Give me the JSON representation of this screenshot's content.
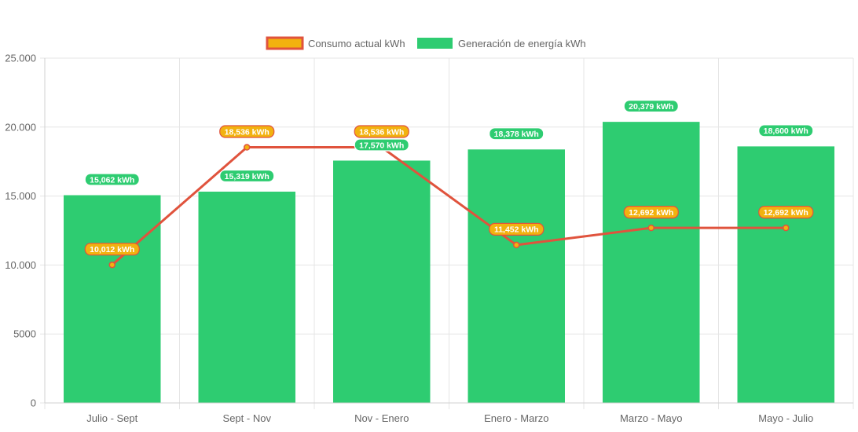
{
  "chart_data": {
    "type": "bar",
    "categories": [
      "Julio - Sept",
      "Sept - Nov",
      "Nov - Enero",
      "Enero - Marzo",
      "Marzo - Mayo",
      "Mayo - Julio"
    ],
    "ylim": [
      0,
      25000
    ],
    "y_ticks": [
      {
        "value": 0,
        "label": "0"
      },
      {
        "value": 5000,
        "label": "5000"
      },
      {
        "value": 10000,
        "label": "10.000"
      },
      {
        "value": 15000,
        "label": "15.000"
      },
      {
        "value": 20000,
        "label": "20.000"
      },
      {
        "value": 25000,
        "label": "25.000"
      }
    ],
    "grid": true,
    "legend_position": "top",
    "series": [
      {
        "name": "Consumo actual kWh",
        "type": "line",
        "color": "#e0533d",
        "fill_color": "#f2b20f",
        "values": [
          10012,
          18536,
          18536,
          11452,
          12692,
          12692
        ],
        "data_labels": [
          "10,012 kWh",
          "18,536 kWh",
          "18,536 kWh",
          "11,452 kWh",
          "12,692 kWh",
          "12,692 kWh"
        ]
      },
      {
        "name": "Generación de energía kWh",
        "type": "bar",
        "color": "#2ecc71",
        "values": [
          15062,
          15319,
          17570,
          18378,
          20379,
          18600
        ],
        "data_labels": [
          "15,062 kWh",
          "15,319 kWh",
          "17,570 kWh",
          "18,378 kWh",
          "20,379 kWh",
          "18,600 kWh"
        ]
      }
    ]
  }
}
